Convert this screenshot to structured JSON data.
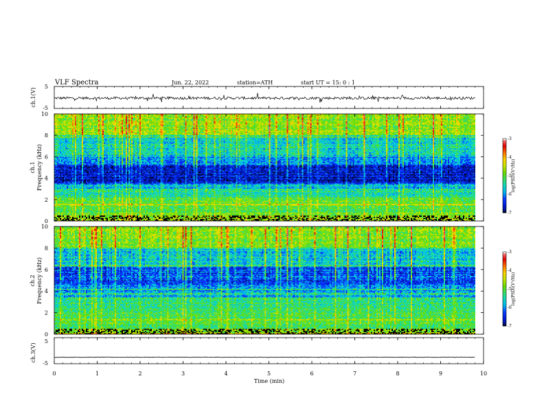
{
  "header": {
    "title": "VLF  Spectra",
    "date": "Jun. 22, 2022",
    "station": "station=ATH",
    "start_ut": "start  UT  =    15: 0   : 1"
  },
  "colors": {
    "trace": "#000000",
    "spectrogram_palette": [
      "#000000",
      "#001060",
      "#0018d8",
      "#0a3cff",
      "#00b4f0",
      "#10d8c0",
      "#36e060",
      "#6edc00",
      "#c8e600",
      "#ffd200",
      "#ff6e00",
      "#e00000",
      "#ff8c8c",
      "#ffffff"
    ]
  },
  "chart_data": [
    {
      "type": "line",
      "panel": "ch1-waveform",
      "ylabel": "ch.1(V)",
      "ylim": [
        -5,
        5
      ],
      "yticks": [
        "5",
        "-5"
      ],
      "xlim": [
        0,
        9.8
      ],
      "baseline": -0.3,
      "noise": 1.2
    },
    {
      "type": "heatmap",
      "panel": "ch1-spectrogram",
      "ylabel": "ch.1\nFrequency  (kHz)",
      "ylim": [
        0,
        10
      ],
      "yticks": [
        "0",
        "2",
        "4",
        "6",
        "8",
        "10"
      ],
      "xlim": [
        0,
        9.8
      ],
      "colorbar": {
        "label": "log(PSD)(V²/Hz)",
        "range": [
          -7,
          -3
        ],
        "ticks": [
          "-3",
          "-4",
          "-5",
          "-6",
          "-7"
        ]
      },
      "bands_khz": [
        {
          "from": 0,
          "to": 0.5,
          "level": -4.8
        },
        {
          "from": 0.5,
          "to": 2.2,
          "level": -5.1
        },
        {
          "from": 2.2,
          "to": 3.0,
          "level": -5.5
        },
        {
          "from": 3.0,
          "to": 3.5,
          "level": -6.0
        },
        {
          "from": 3.5,
          "to": 5.2,
          "level": -6.8
        },
        {
          "from": 5.2,
          "to": 6.0,
          "level": -6.3
        },
        {
          "from": 6.0,
          "to": 8.0,
          "level": -5.8
        },
        {
          "from": 8.0,
          "to": 10.0,
          "level": -5.0
        }
      ]
    },
    {
      "type": "heatmap",
      "panel": "ch2-spectrogram",
      "ylabel": "ch.2\nFrequency  (kHz)",
      "ylim": [
        0,
        10
      ],
      "yticks": [
        "0",
        "2",
        "4",
        "6",
        "8",
        "10"
      ],
      "xlim": [
        0,
        9.8
      ],
      "colorbar": {
        "label": "log(PSD)(V²/Hz)",
        "range": [
          -7,
          -3
        ],
        "ticks": [
          "-3",
          "-4",
          "-5",
          "-6",
          "-7"
        ]
      },
      "bands_khz": [
        {
          "from": 0,
          "to": 0.5,
          "level": -4.9
        },
        {
          "from": 0.5,
          "to": 2.0,
          "level": -5.2
        },
        {
          "from": 2.0,
          "to": 3.4,
          "level": -5.4
        },
        {
          "from": 3.4,
          "to": 4.6,
          "level": -6.0
        },
        {
          "from": 4.6,
          "to": 6.2,
          "level": -6.5
        },
        {
          "from": 6.2,
          "to": 8.0,
          "level": -5.9
        },
        {
          "from": 8.0,
          "to": 10.0,
          "level": -5.0
        }
      ]
    },
    {
      "type": "line",
      "panel": "ch3-waveform",
      "ylabel": "ch.3(V)",
      "ylim": [
        -5,
        5
      ],
      "yticks": [
        "5",
        "-5"
      ],
      "xlim": [
        0,
        9.8
      ],
      "baseline": -2.5,
      "noise": 0.2
    }
  ],
  "xaxis": {
    "label": "Time  (min)",
    "range": [
      0,
      10
    ],
    "ticks": [
      "0",
      "1",
      "2",
      "3",
      "4",
      "5",
      "6",
      "7",
      "8",
      "9",
      "10"
    ]
  }
}
